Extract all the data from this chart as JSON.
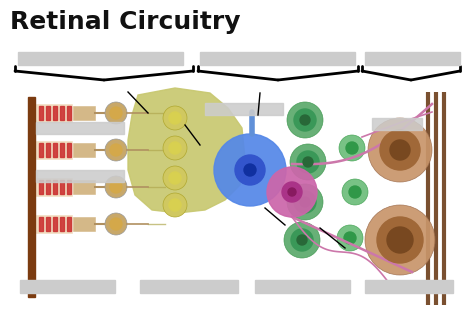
{
  "title": "Retinal Circuitry",
  "title_fontsize": 18,
  "bg_color": "#ffffff",
  "fig_width": 4.74,
  "fig_height": 3.31,
  "dpi": 100,
  "blur_color": "#cccccc",
  "rpe_color": "#7B3B10",
  "rod_outer_color": "#f0dcc0",
  "rod_stripe_color": "#cc3333",
  "rod_inner_color": "#d4b888",
  "photoreceptor_body_color": "#c8a86a",
  "photoreceptor_nucleus_color": "#d4a84a",
  "bipolar_color": "#c8c870",
  "bipolar_nucleus_color": "#d8d050",
  "blue_amacrine_color": "#5588e8",
  "blue_amacrine_dark": "#3355cc",
  "pink_amacrine_color": "#cc66aa",
  "pink_amacrine_dark": "#aa3388",
  "green_bipolar_color": "#58a868",
  "green_bipolar_dark": "#286838",
  "green_small_color": "#60b870",
  "ganglion_color": "#c8956a",
  "ganglion_nucleus_color": "#a06838",
  "ganglion_nucleus_dark": "#784820",
  "pink_process_color": "#cc77aa",
  "nerve_color": "#7a5030",
  "line_color": "#000000"
}
